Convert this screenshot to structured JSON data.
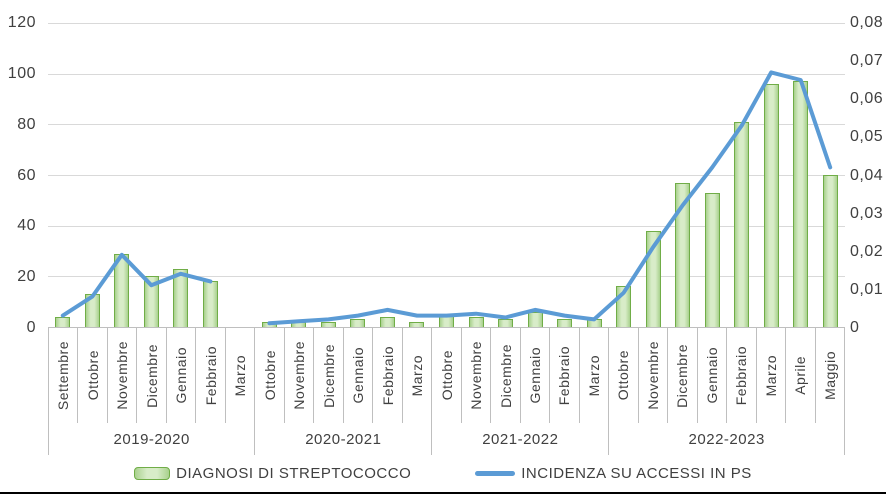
{
  "colors": {
    "bar_fill": "#d8ecc8",
    "bar_edge": "#70ad47",
    "line": "#5b9bd5",
    "gridline": "#d9d9d9",
    "axis_line": "#bfbfbf",
    "text": "#404040"
  },
  "legend": {
    "bars_label": "DIAGNOSI DI STREPTOCOCCO",
    "line_label": "INCIDENZA SU ACCESSI IN PS"
  },
  "chart_data": {
    "type": "combo",
    "categories": [
      "Settembre",
      "Ottobre",
      "Novembre",
      "Dicembre",
      "Gennaio",
      "Febbraio",
      "Marzo",
      "Ottobre",
      "Novembre",
      "Dicembre",
      "Gennaio",
      "Febbraio",
      "Marzo",
      "Ottobre",
      "Novembre",
      "Dicembre",
      "Gennaio",
      "Febbraio",
      "Marzo",
      "Ottobre",
      "Novembre",
      "Dicembre",
      "Gennaio",
      "Febbraio",
      "Marzo",
      "Aprile",
      "Maggio"
    ],
    "group_spans": [
      {
        "label": "2019-2020",
        "count": 7
      },
      {
        "label": "2020-2021",
        "count": 6
      },
      {
        "label": "2021-2022",
        "count": 6
      },
      {
        "label": "2022-2023",
        "count": 8
      }
    ],
    "series": [
      {
        "name": "DIAGNOSI DI STREPTOCOCCO",
        "type": "bar",
        "axis": "left",
        "values": [
          4,
          13,
          29,
          20,
          23,
          18,
          null,
          2,
          2,
          2,
          3,
          4,
          2,
          5,
          4,
          3,
          6,
          3,
          3,
          16,
          38,
          57,
          53,
          81,
          96,
          97,
          60
        ]
      },
      {
        "name": "INCIDENZA SU ACCESSI IN PS",
        "type": "line",
        "axis": "right",
        "values": [
          0.003,
          0.008,
          0.019,
          0.011,
          0.014,
          0.012,
          null,
          0.001,
          0.0015,
          0.002,
          0.003,
          0.0045,
          0.003,
          0.003,
          0.0035,
          0.0025,
          0.0045,
          0.003,
          0.002,
          0.009,
          0.021,
          0.032,
          0.042,
          0.053,
          0.067,
          0.065,
          0.042
        ]
      }
    ],
    "left_axis": {
      "min": 0,
      "max": 120,
      "tick_labels_top_down": [
        "120",
        "100",
        "80",
        "60",
        "40",
        "20",
        "0"
      ]
    },
    "right_axis": {
      "min": 0,
      "max": 0.08,
      "tick_labels_top_down": [
        "0,08",
        "0,07",
        "0,06",
        "0,05",
        "0,04",
        "0,03",
        "0,02",
        "0,01",
        "0"
      ]
    },
    "grid": true,
    "legend_position": "bottom"
  }
}
